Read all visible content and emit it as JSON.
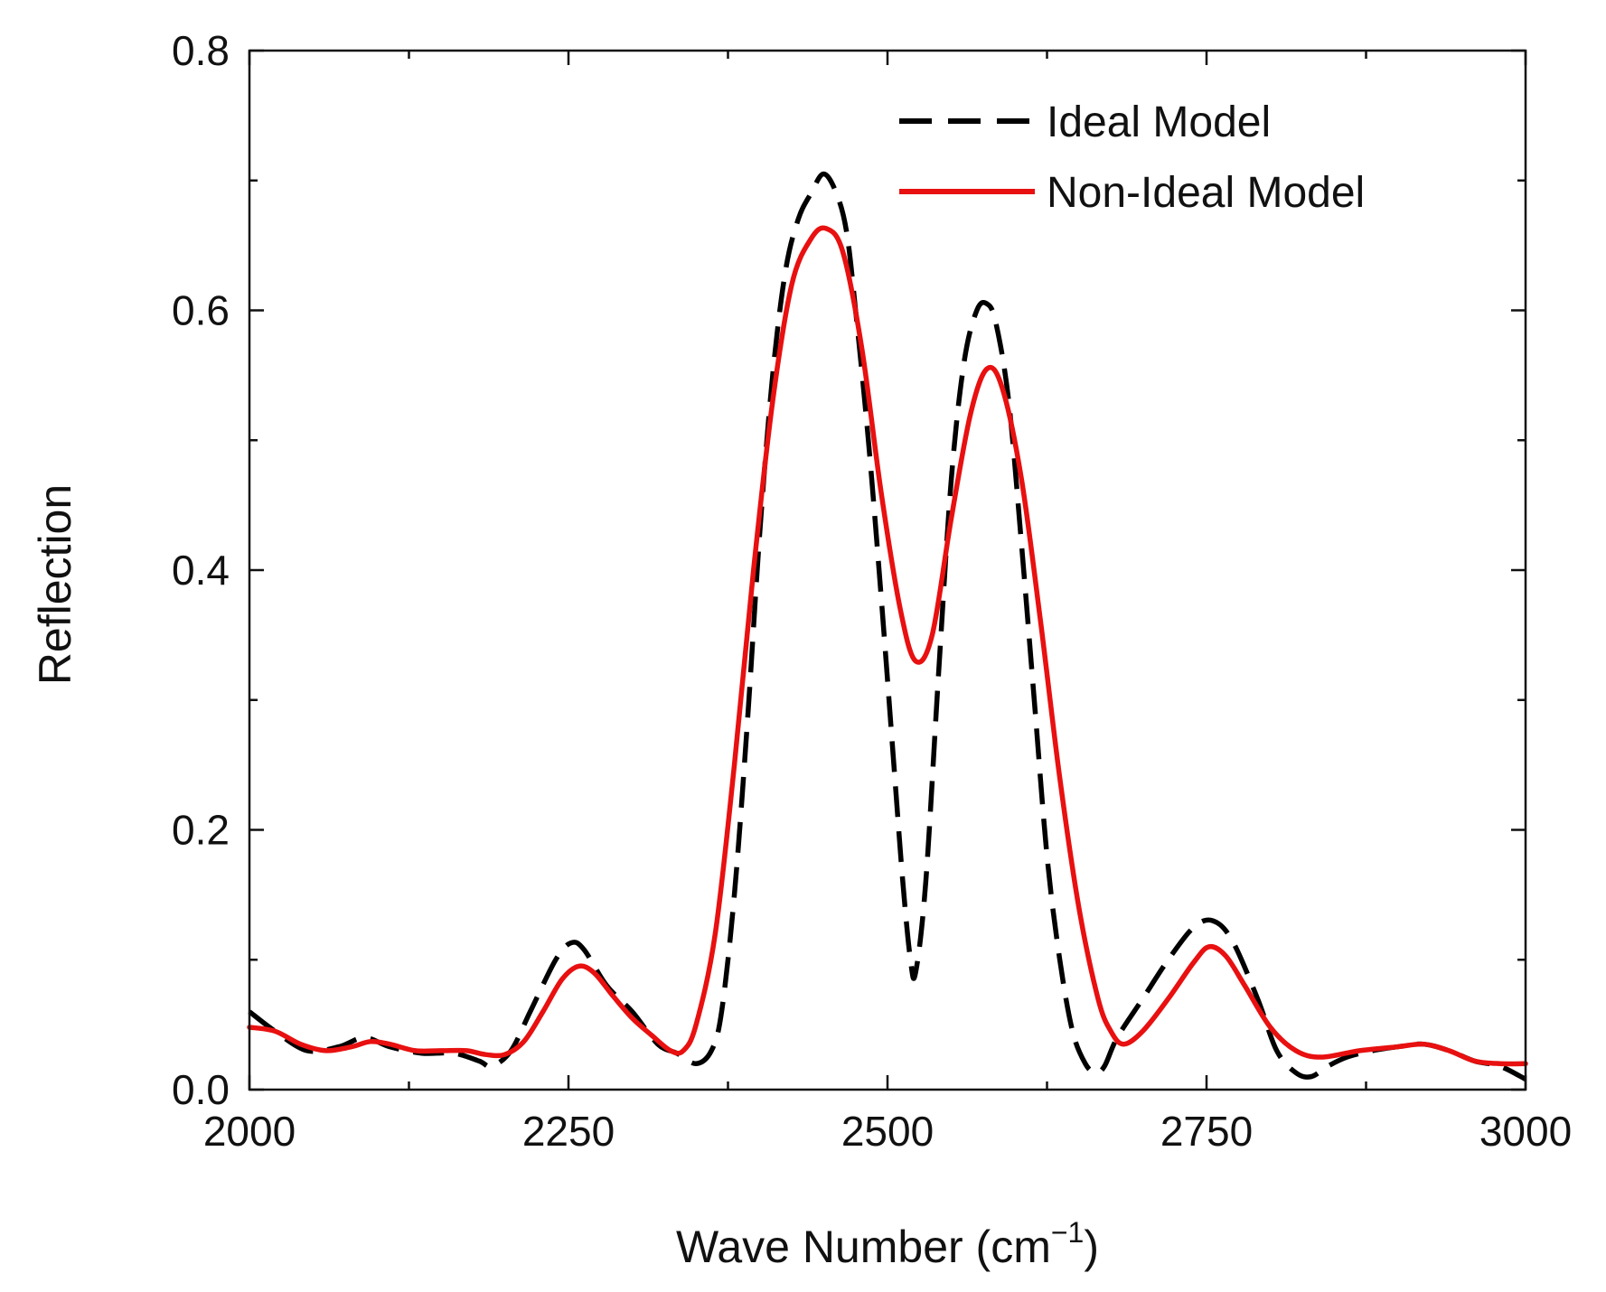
{
  "chart_data": {
    "type": "line",
    "title": "",
    "xlabel": "Wave Number (cm",
    "xlabel_sup": "−1",
    "xlabel_close": ")",
    "ylabel": "Reflection",
    "xlim": [
      2000,
      3000
    ],
    "ylim": [
      0.0,
      0.8
    ],
    "xticks": [
      2000,
      2250,
      2500,
      2750,
      3000
    ],
    "xtick_labels": [
      "2000",
      "2250",
      "2500",
      "2750",
      "3000"
    ],
    "yticks": [
      0.0,
      0.2,
      0.4,
      0.6,
      0.8
    ],
    "ytick_labels": [
      "0.0",
      "0.2",
      "0.4",
      "0.6",
      "0.8"
    ],
    "grid": false,
    "legend_position": "top-right",
    "series": [
      {
        "name": "Ideal Model",
        "style": "dashed",
        "color": "#000000",
        "x": [
          2000,
          2020,
          2045,
          2070,
          2090,
          2110,
          2135,
          2160,
          2180,
          2190,
          2205,
          2220,
          2240,
          2252,
          2262,
          2280,
          2300,
          2320,
          2335,
          2350,
          2362,
          2370,
          2380,
          2390,
          2400,
          2410,
          2420,
          2430,
          2440,
          2450,
          2460,
          2468,
          2475,
          2485,
          2495,
          2505,
          2512,
          2518,
          2522,
          2530,
          2540,
          2550,
          2560,
          2570,
          2578,
          2585,
          2595,
          2605,
          2615,
          2625,
          2635,
          2645,
          2655,
          2663,
          2670,
          2680,
          2700,
          2720,
          2740,
          2755,
          2770,
          2790,
          2805,
          2820,
          2832,
          2845,
          2860,
          2880,
          2900,
          2920,
          2940,
          2960,
          2980,
          3000
        ],
        "y": [
          0.06,
          0.045,
          0.03,
          0.033,
          0.04,
          0.033,
          0.028,
          0.028,
          0.022,
          0.018,
          0.03,
          0.06,
          0.1,
          0.113,
          0.108,
          0.08,
          0.06,
          0.035,
          0.028,
          0.02,
          0.03,
          0.06,
          0.15,
          0.28,
          0.43,
          0.55,
          0.63,
          0.67,
          0.69,
          0.705,
          0.69,
          0.66,
          0.6,
          0.5,
          0.38,
          0.25,
          0.16,
          0.1,
          0.09,
          0.16,
          0.32,
          0.47,
          0.56,
          0.6,
          0.605,
          0.59,
          0.53,
          0.42,
          0.3,
          0.18,
          0.1,
          0.045,
          0.02,
          0.013,
          0.018,
          0.04,
          0.07,
          0.1,
          0.125,
          0.13,
          0.115,
          0.07,
          0.03,
          0.013,
          0.01,
          0.018,
          0.025,
          0.03,
          0.033,
          0.035,
          0.03,
          0.022,
          0.018,
          0.008
        ]
      },
      {
        "name": "Non-Ideal Model",
        "style": "solid",
        "color": "#e81010",
        "x": [
          2000,
          2020,
          2040,
          2060,
          2080,
          2095,
          2110,
          2130,
          2150,
          2170,
          2185,
          2200,
          2215,
          2230,
          2245,
          2258,
          2270,
          2285,
          2300,
          2315,
          2330,
          2340,
          2350,
          2365,
          2380,
          2395,
          2410,
          2425,
          2440,
          2452,
          2465,
          2480,
          2495,
          2510,
          2522,
          2535,
          2550,
          2565,
          2578,
          2590,
          2605,
          2620,
          2635,
          2650,
          2665,
          2675,
          2685,
          2700,
          2720,
          2740,
          2752,
          2765,
          2780,
          2800,
          2820,
          2840,
          2870,
          2900,
          2920,
          2940,
          2960,
          2980,
          3000
        ],
        "y": [
          0.048,
          0.045,
          0.035,
          0.03,
          0.033,
          0.037,
          0.035,
          0.03,
          0.03,
          0.03,
          0.027,
          0.027,
          0.037,
          0.06,
          0.085,
          0.095,
          0.09,
          0.072,
          0.055,
          0.042,
          0.03,
          0.03,
          0.05,
          0.12,
          0.25,
          0.4,
          0.53,
          0.62,
          0.655,
          0.663,
          0.645,
          0.57,
          0.46,
          0.37,
          0.33,
          0.35,
          0.44,
          0.52,
          0.555,
          0.54,
          0.47,
          0.36,
          0.24,
          0.14,
          0.07,
          0.045,
          0.035,
          0.045,
          0.07,
          0.098,
          0.11,
          0.103,
          0.08,
          0.048,
          0.03,
          0.025,
          0.03,
          0.033,
          0.035,
          0.03,
          0.022,
          0.02,
          0.02
        ]
      }
    ]
  }
}
